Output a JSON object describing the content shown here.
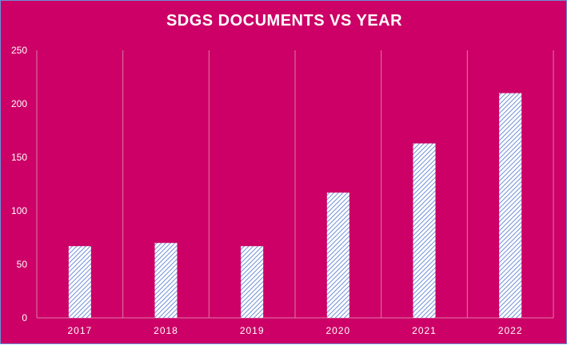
{
  "chart_data": {
    "type": "bar",
    "title": "SDGS DOCUMENTS VS YEAR",
    "xlabel": "",
    "ylabel": "",
    "categories": [
      "2017",
      "2018",
      "2019",
      "2020",
      "2021",
      "2022"
    ],
    "values": [
      67,
      70,
      67,
      117,
      163,
      210
    ],
    "ylim": [
      0,
      250
    ],
    "yticks": [
      0,
      50,
      100,
      150,
      200,
      250
    ],
    "grid": "vertical category separators",
    "legend": "none",
    "colors": {
      "background": "#cc0066",
      "bar_fill": "#ffffff",
      "bar_hatch": "#6f8fd8",
      "gridline": "#e07aa8",
      "text": "#ffffff"
    }
  }
}
